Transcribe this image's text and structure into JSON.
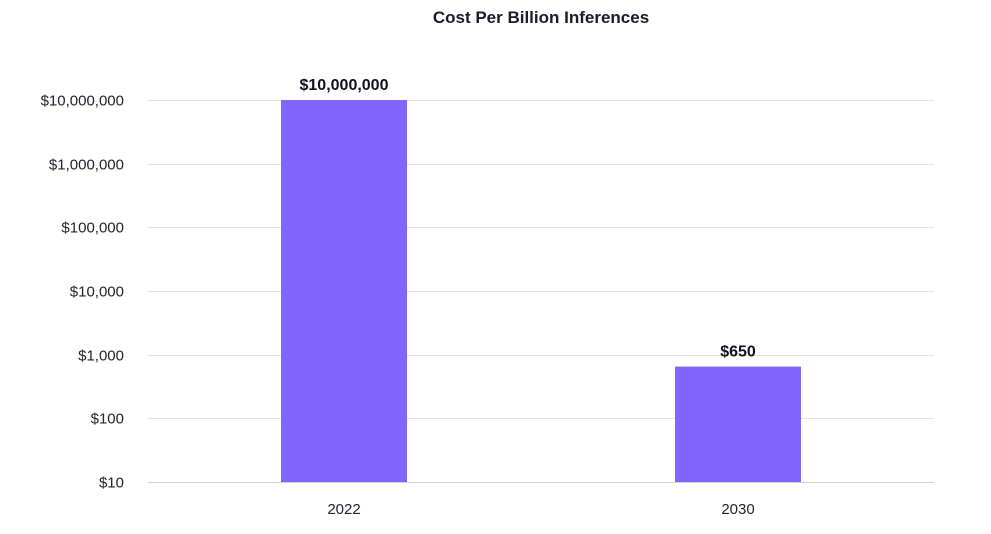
{
  "chart_data": {
    "type": "bar",
    "title": "Cost Per Billion Inferences",
    "xlabel": "",
    "ylabel": "",
    "yscale": "log",
    "ylim": [
      10,
      10000000
    ],
    "categories": [
      "2022",
      "2030"
    ],
    "values": [
      10000000,
      650
    ],
    "data_labels": [
      "$10,000,000",
      "$650"
    ],
    "ytick_values": [
      10,
      100,
      1000,
      10000,
      100000,
      1000000,
      10000000
    ],
    "ytick_labels": [
      "$10",
      "$100",
      "$1,000",
      "$10,000",
      "$100,000",
      "$1,000,000",
      "$10,000,000"
    ],
    "grid": true,
    "bar_color": "#8264ff"
  }
}
